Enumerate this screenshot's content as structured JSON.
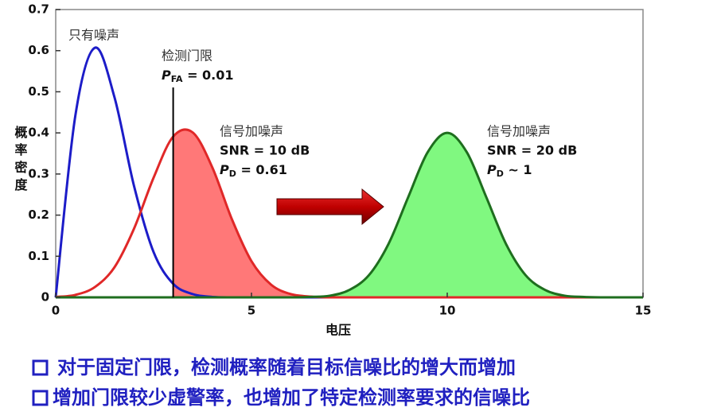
{
  "chart_data": {
    "type": "line",
    "xlabel": "电压",
    "ylabel": "概率密度",
    "xlim": [
      0,
      15
    ],
    "ylim": [
      0,
      0.7
    ],
    "xticks": [
      0,
      5,
      10,
      15
    ],
    "yticks": [
      0,
      0.1,
      0.2,
      0.3,
      0.4,
      0.5,
      0.6,
      0.7
    ],
    "x": [
      0,
      0.5,
      1,
      1.5,
      2,
      2.5,
      3,
      3.5,
      4,
      4.5,
      5,
      5.5,
      6,
      6.5,
      7,
      7.5,
      8,
      8.5,
      9,
      9.5,
      10,
      10.5,
      11,
      11.5,
      12,
      12.5,
      13,
      13.5,
      14,
      14.5,
      15
    ],
    "threshold": {
      "x": 3,
      "label": "检测门限",
      "pfa": {
        "symbol": "P",
        "subscript": "FA",
        "text": " = 0.01"
      }
    },
    "series": [
      {
        "name": "只有噪声",
        "color": "#1c1cc8",
        "fill": "#3a2cc8",
        "values": [
          0,
          0.441,
          0.607,
          0.487,
          0.271,
          0.11,
          0.033,
          0.008,
          0.001,
          0,
          0,
          0,
          0,
          0,
          0,
          0,
          0,
          0,
          0,
          0,
          0,
          0,
          0,
          0,
          0,
          0,
          0,
          0,
          0,
          0,
          0
        ]
      },
      {
        "name": "信号加噪声",
        "color": "#e02828",
        "fill": "#ff7878",
        "snr": "SNR = 10 dB",
        "pd": {
          "symbol": "P",
          "subscript": "D",
          "text": " = 0.61"
        },
        "values": [
          0.001,
          0.006,
          0.025,
          0.073,
          0.167,
          0.291,
          0.391,
          0.401,
          0.316,
          0.19,
          0.088,
          0.031,
          0.008,
          0.002,
          0,
          0,
          0,
          0,
          0,
          0,
          0,
          0,
          0,
          0,
          0,
          0,
          0,
          0,
          0,
          0,
          0
        ]
      },
      {
        "name": "信号加噪声",
        "color": "#1e6e1e",
        "fill": "#80f880",
        "snr": "SNR = 20 dB",
        "pd": {
          "symbol": "P",
          "subscript": "D",
          "text": " ~ 1"
        },
        "values": [
          0,
          0,
          0,
          0,
          0,
          0,
          0,
          0,
          0,
          0,
          0,
          0,
          0,
          0.001,
          0.004,
          0.018,
          0.054,
          0.13,
          0.243,
          0.353,
          0.4,
          0.353,
          0.243,
          0.13,
          0.054,
          0.018,
          0.004,
          0.001,
          0,
          0,
          0
        ]
      }
    ],
    "notes": [
      "对于固定门限，检测概率随着目标信噪比的增大而增加",
      "增加门限较少虚警率，也增加了特定检测率要求的信噪比"
    ]
  }
}
